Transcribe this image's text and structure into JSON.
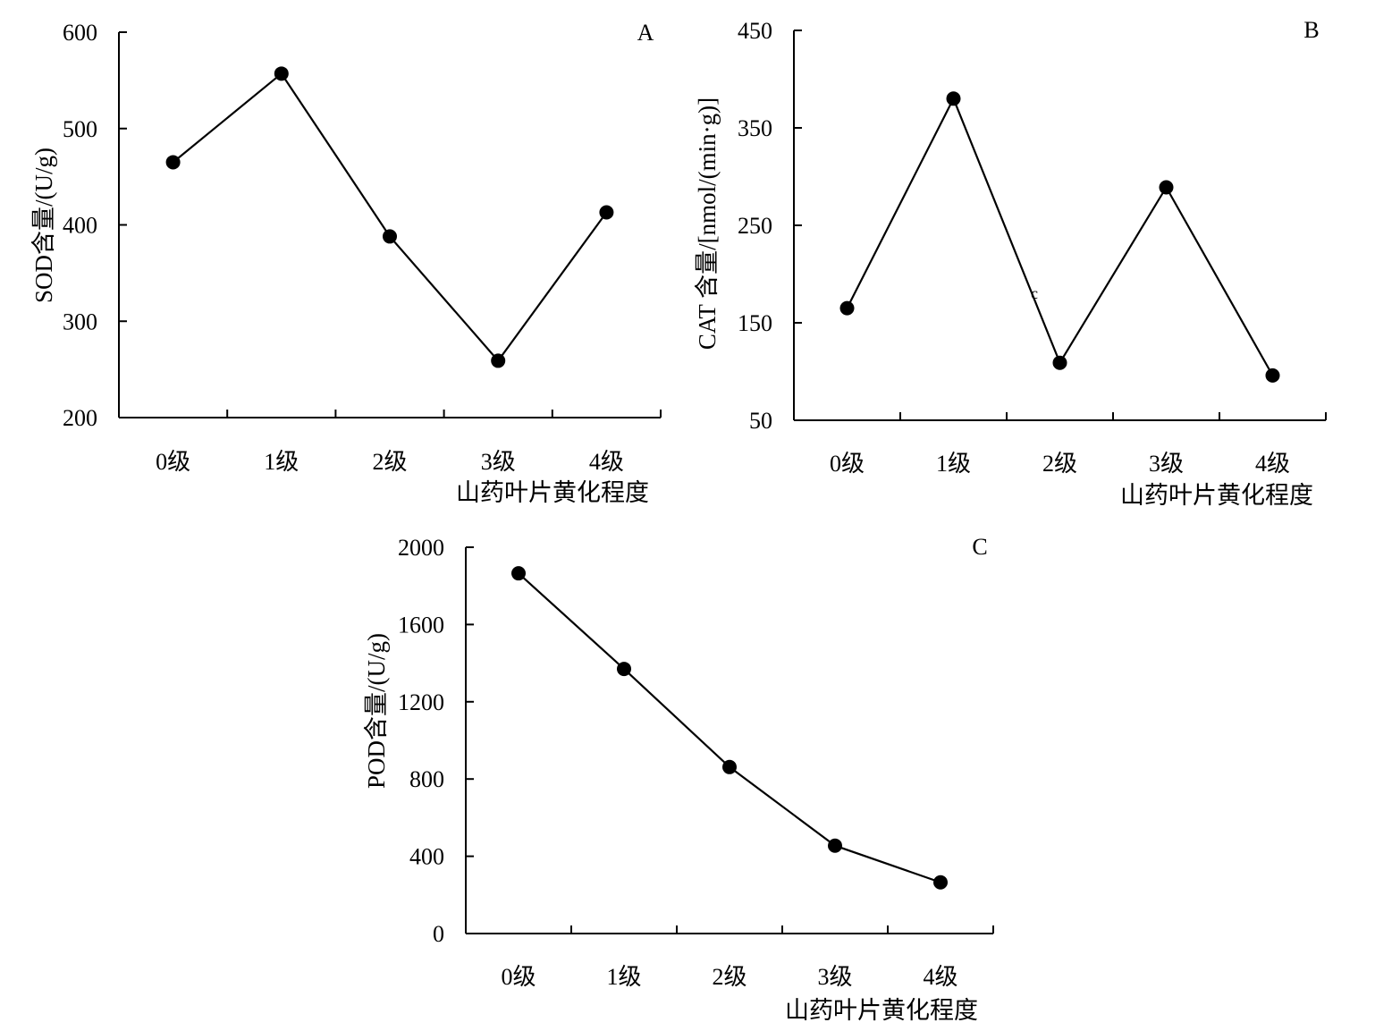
{
  "chart_data": [
    {
      "panel": "A",
      "type": "line",
      "categories": [
        "0级",
        "1级",
        "2级",
        "3级",
        "4级"
      ],
      "values": [
        465,
        557,
        388,
        259,
        413
      ],
      "xlabel": "山药叶片黄化程度",
      "ylabel": "SOD含量/(U/g)",
      "yticks": [
        "600",
        "500",
        "400",
        "300",
        "200"
      ],
      "ylim": [
        200,
        600
      ],
      "grid": false,
      "marker": "filled-circle",
      "color": "#000000"
    },
    {
      "panel": "B",
      "type": "line",
      "categories": [
        "0级",
        "1级",
        "2级",
        "3级",
        "4级"
      ],
      "values": [
        165,
        380,
        109,
        289,
        96
      ],
      "xlabel": "山药叶片黄化程度",
      "ylabel": "CAT 含量/[nmol/(min·g)]",
      "yticks": [
        "450",
        "350",
        "250",
        "150",
        "50"
      ],
      "ylim": [
        50,
        450
      ],
      "stray_mark": "c",
      "grid": false,
      "marker": "filled-circle",
      "color": "#000000"
    },
    {
      "panel": "C",
      "type": "line",
      "categories": [
        "0级",
        "1级",
        "2级",
        "3级",
        "4级"
      ],
      "values": [
        1865,
        1370,
        862,
        455,
        265
      ],
      "xlabel": "山药叶片黄化程度",
      "ylabel": "POD含量/(U/g)",
      "yticks": [
        "2000",
        "1600",
        "1200",
        "800",
        "400",
        "0"
      ],
      "ylim": [
        0,
        2000
      ],
      "grid": false,
      "marker": "filled-circle",
      "color": "#000000"
    }
  ]
}
